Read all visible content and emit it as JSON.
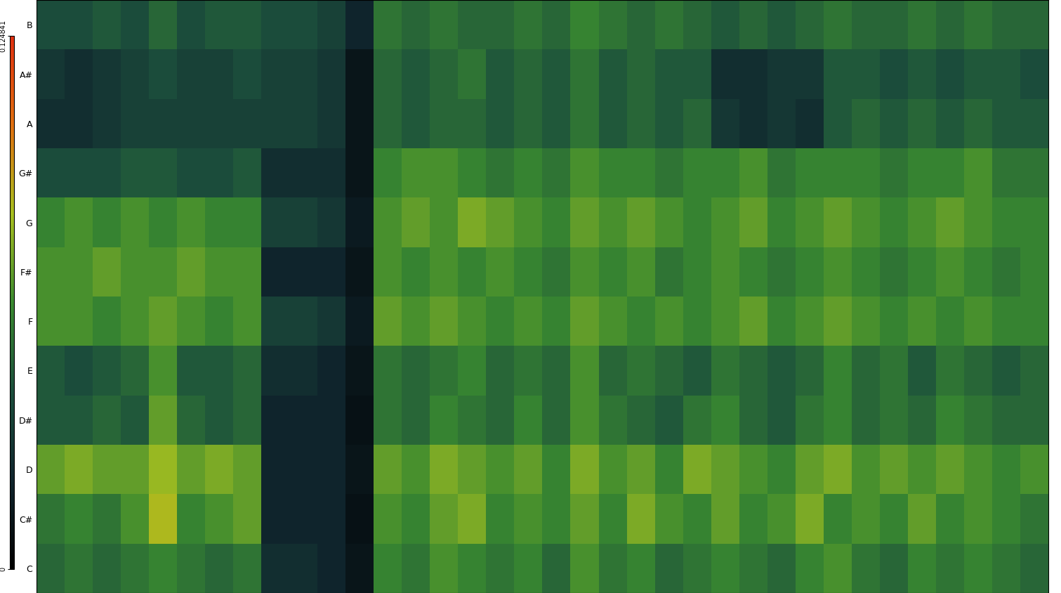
{
  "chart_data": {
    "type": "heatmap",
    "rows": [
      "C",
      "C#",
      "D",
      "D#",
      "E",
      "F",
      "F#",
      "G",
      "G#",
      "A",
      "A#",
      "B"
    ],
    "cells": [
      [
        0.05,
        0.055,
        0.05,
        0.055,
        0.06,
        0.055,
        0.05,
        0.055,
        0.025,
        0.025,
        0.02,
        0.012,
        0.06,
        0.055,
        0.065,
        0.06,
        0.055,
        0.06,
        0.05,
        0.065,
        0.055,
        0.06,
        0.05,
        0.055,
        0.06,
        0.055,
        0.05,
        0.06,
        0.065,
        0.055,
        0.05,
        0.06,
        0.055,
        0.06,
        0.055,
        0.05
      ],
      [
        0.055,
        0.06,
        0.055,
        0.065,
        0.085,
        0.06,
        0.065,
        0.07,
        0.02,
        0.02,
        0.02,
        0.01,
        0.065,
        0.06,
        0.07,
        0.075,
        0.06,
        0.065,
        0.06,
        0.07,
        0.06,
        0.075,
        0.065,
        0.06,
        0.07,
        0.06,
        0.065,
        0.075,
        0.06,
        0.065,
        0.06,
        0.07,
        0.06,
        0.065,
        0.06,
        0.055
      ],
      [
        0.07,
        0.075,
        0.07,
        0.07,
        0.08,
        0.07,
        0.075,
        0.07,
        0.02,
        0.02,
        0.02,
        0.012,
        0.07,
        0.065,
        0.075,
        0.07,
        0.065,
        0.07,
        0.06,
        0.075,
        0.065,
        0.07,
        0.06,
        0.075,
        0.07,
        0.065,
        0.06,
        0.07,
        0.075,
        0.065,
        0.07,
        0.065,
        0.07,
        0.065,
        0.06,
        0.065
      ],
      [
        0.045,
        0.045,
        0.05,
        0.045,
        0.07,
        0.05,
        0.045,
        0.05,
        0.02,
        0.02,
        0.02,
        0.01,
        0.055,
        0.05,
        0.06,
        0.055,
        0.05,
        0.06,
        0.05,
        0.065,
        0.055,
        0.05,
        0.045,
        0.055,
        0.06,
        0.05,
        0.045,
        0.055,
        0.06,
        0.05,
        0.055,
        0.05,
        0.06,
        0.055,
        0.05,
        0.05
      ],
      [
        0.045,
        0.04,
        0.045,
        0.05,
        0.065,
        0.045,
        0.045,
        0.05,
        0.025,
        0.025,
        0.02,
        0.012,
        0.055,
        0.05,
        0.055,
        0.06,
        0.05,
        0.055,
        0.05,
        0.065,
        0.05,
        0.055,
        0.05,
        0.045,
        0.055,
        0.05,
        0.045,
        0.05,
        0.06,
        0.05,
        0.055,
        0.045,
        0.055,
        0.05,
        0.045,
        0.05
      ],
      [
        0.065,
        0.065,
        0.06,
        0.065,
        0.07,
        0.065,
        0.06,
        0.065,
        0.035,
        0.035,
        0.03,
        0.015,
        0.07,
        0.065,
        0.07,
        0.065,
        0.06,
        0.065,
        0.06,
        0.07,
        0.065,
        0.06,
        0.065,
        0.06,
        0.065,
        0.07,
        0.06,
        0.065,
        0.07,
        0.065,
        0.06,
        0.065,
        0.06,
        0.065,
        0.06,
        0.06
      ],
      [
        0.065,
        0.065,
        0.07,
        0.065,
        0.065,
        0.07,
        0.065,
        0.065,
        0.02,
        0.02,
        0.02,
        0.012,
        0.065,
        0.06,
        0.065,
        0.06,
        0.065,
        0.06,
        0.055,
        0.065,
        0.06,
        0.065,
        0.055,
        0.06,
        0.065,
        0.06,
        0.055,
        0.06,
        0.065,
        0.06,
        0.055,
        0.06,
        0.065,
        0.06,
        0.055,
        0.06
      ],
      [
        0.06,
        0.065,
        0.06,
        0.065,
        0.06,
        0.065,
        0.06,
        0.06,
        0.035,
        0.035,
        0.03,
        0.015,
        0.065,
        0.07,
        0.065,
        0.075,
        0.07,
        0.065,
        0.06,
        0.07,
        0.065,
        0.07,
        0.065,
        0.06,
        0.065,
        0.07,
        0.06,
        0.065,
        0.07,
        0.065,
        0.06,
        0.065,
        0.07,
        0.065,
        0.06,
        0.06
      ],
      [
        0.04,
        0.04,
        0.04,
        0.045,
        0.045,
        0.04,
        0.04,
        0.045,
        0.025,
        0.025,
        0.025,
        0.012,
        0.06,
        0.065,
        0.065,
        0.06,
        0.055,
        0.06,
        0.055,
        0.065,
        0.06,
        0.06,
        0.055,
        0.06,
        0.06,
        0.065,
        0.055,
        0.06,
        0.06,
        0.06,
        0.055,
        0.06,
        0.06,
        0.065,
        0.055,
        0.055
      ],
      [
        0.025,
        0.025,
        0.03,
        0.035,
        0.035,
        0.035,
        0.035,
        0.035,
        0.035,
        0.035,
        0.03,
        0.012,
        0.05,
        0.045,
        0.05,
        0.05,
        0.045,
        0.05,
        0.045,
        0.055,
        0.045,
        0.05,
        0.045,
        0.05,
        0.03,
        0.025,
        0.03,
        0.025,
        0.045,
        0.05,
        0.045,
        0.05,
        0.045,
        0.05,
        0.045,
        0.045
      ],
      [
        0.03,
        0.025,
        0.03,
        0.035,
        0.04,
        0.035,
        0.035,
        0.04,
        0.035,
        0.035,
        0.03,
        0.012,
        0.05,
        0.045,
        0.05,
        0.055,
        0.045,
        0.05,
        0.045,
        0.055,
        0.045,
        0.05,
        0.045,
        0.045,
        0.025,
        0.025,
        0.03,
        0.03,
        0.045,
        0.045,
        0.04,
        0.045,
        0.04,
        0.045,
        0.045,
        0.04
      ],
      [
        0.04,
        0.04,
        0.045,
        0.04,
        0.05,
        0.04,
        0.045,
        0.045,
        0.04,
        0.04,
        0.035,
        0.02,
        0.055,
        0.05,
        0.055,
        0.05,
        0.05,
        0.055,
        0.05,
        0.06,
        0.055,
        0.05,
        0.055,
        0.05,
        0.045,
        0.05,
        0.045,
        0.05,
        0.055,
        0.05,
        0.05,
        0.055,
        0.05,
        0.055,
        0.05,
        0.05
      ]
    ],
    "colorbar_range": [
      0,
      0.124841
    ],
    "colorbar_ticks": [
      0,
      0.124841
    ],
    "tick_labels": "y"
  }
}
